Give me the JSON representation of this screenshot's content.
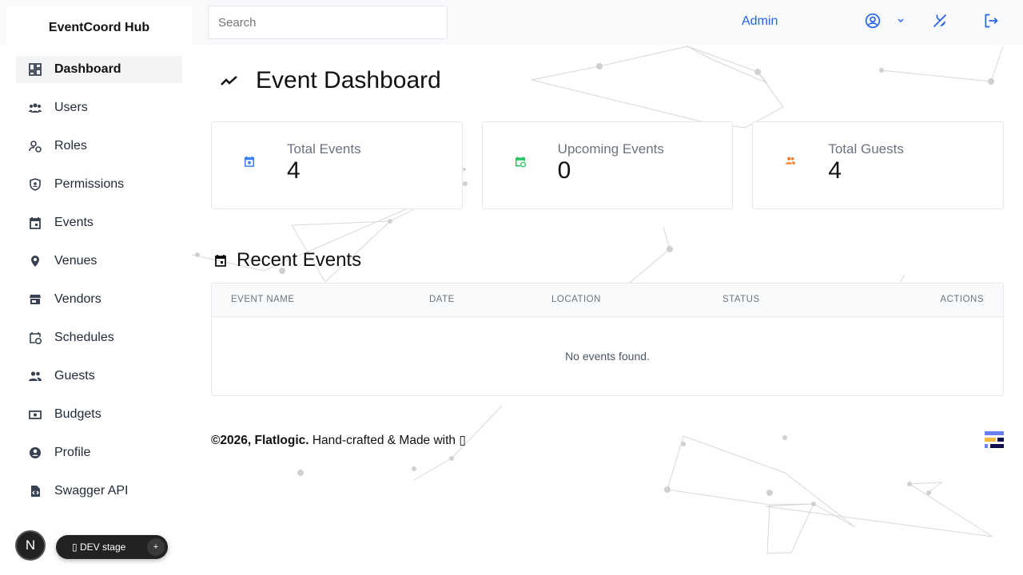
{
  "app": {
    "name": "EventCoord Hub"
  },
  "search": {
    "placeholder": "Search"
  },
  "header": {
    "user": "Admin",
    "icons": [
      "user-circle-icon",
      "chevron-down-icon",
      "theme-toggle-icon",
      "logout-icon"
    ],
    "accent": "#2563eb"
  },
  "sidebar": {
    "items": [
      {
        "label": "Dashboard",
        "icon": "dashboard-icon",
        "active": true
      },
      {
        "label": "Users",
        "icon": "users-icon"
      },
      {
        "label": "Roles",
        "icon": "roles-icon"
      },
      {
        "label": "Permissions",
        "icon": "shield-icon"
      },
      {
        "label": "Events",
        "icon": "calendar-icon"
      },
      {
        "label": "Venues",
        "icon": "map-pin-icon"
      },
      {
        "label": "Vendors",
        "icon": "store-icon"
      },
      {
        "label": "Schedules",
        "icon": "calendar-clock-icon"
      },
      {
        "label": "Guests",
        "icon": "guests-icon"
      },
      {
        "label": "Budgets",
        "icon": "cash-icon"
      },
      {
        "label": "Profile",
        "icon": "account-icon"
      },
      {
        "label": "Swagger API",
        "icon": "file-code-icon"
      }
    ]
  },
  "main": {
    "title": "Event Dashboard",
    "cards": [
      {
        "label": "Total Events",
        "value": "4",
        "color": "#3b82f6"
      },
      {
        "label": "Upcoming Events",
        "value": "0",
        "color": "#22c55e"
      },
      {
        "label": "Total Guests",
        "value": "4",
        "color": "#f97316"
      }
    ],
    "recent": {
      "title": "Recent Events",
      "columns": [
        "EVENT NAME",
        "DATE",
        "LOCATION",
        "STATUS",
        "ACTIONS"
      ],
      "empty": "No events found."
    }
  },
  "footer": {
    "copyright": "©2026, Flatlogic.",
    "text": " Hand-crafted & Made with ",
    "glyph": "▯"
  },
  "dev": {
    "badge": "N",
    "label": "▯ DEV stage",
    "plus": "+"
  }
}
